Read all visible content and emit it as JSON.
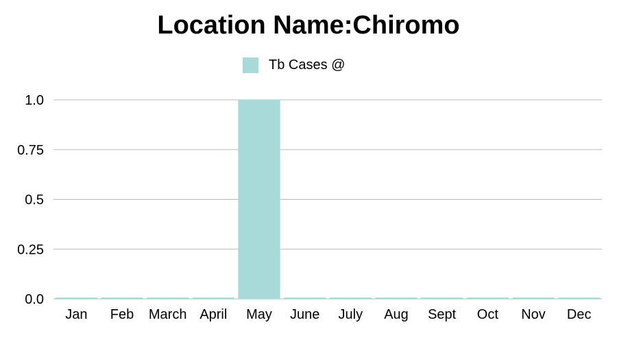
{
  "chart_data": {
    "type": "bar",
    "title": "Location Name:Chiromo",
    "categories": [
      "Jan",
      "Feb",
      "March",
      "April",
      "May",
      "June",
      "July",
      "Aug",
      "Sept",
      "Oct",
      "Nov",
      "Dec"
    ],
    "series": [
      {
        "name": "Tb Cases @",
        "color": "#a8dada",
        "values": [
          0,
          0,
          0,
          0,
          1,
          0,
          0,
          0,
          0,
          0,
          0,
          0
        ]
      }
    ],
    "xlabel": "",
    "ylabel": "",
    "ylim": [
      0,
      1
    ],
    "yticks": [
      "0.0",
      "0.25",
      "0.5",
      "0.75",
      "1.0"
    ],
    "ytick_values": [
      0,
      0.25,
      0.5,
      0.75,
      1
    ],
    "grid": true,
    "legend_position": "top-center",
    "gridline_color": "#bbbbbb"
  }
}
